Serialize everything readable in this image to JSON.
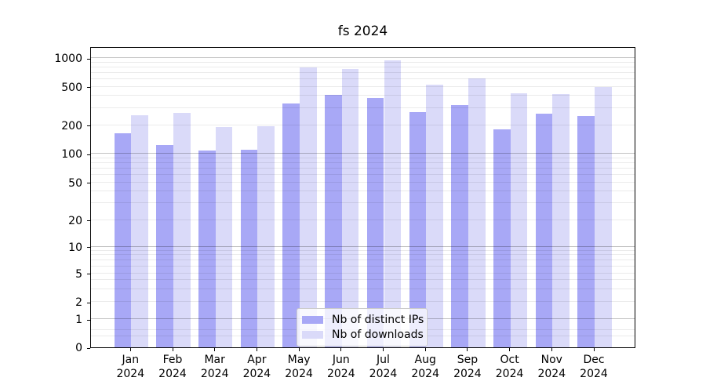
{
  "chart_data": {
    "type": "bar",
    "title": "fs 2024",
    "categories": [
      "Jan",
      "Feb",
      "Mar",
      "Apr",
      "May",
      "Jun",
      "Jul",
      "Aug",
      "Sep",
      "Oct",
      "Nov",
      "Dec"
    ],
    "xtick_year": "2024",
    "series": [
      {
        "name": "Nb of distinct IPs",
        "color": "#a8a8f6",
        "values": [
          165,
          124,
          108,
          110,
          335,
          415,
          385,
          275,
          320,
          180,
          265,
          248
        ]
      },
      {
        "name": "Nb of downloads",
        "color": "#dadaf9",
        "values": [
          255,
          270,
          190,
          195,
          800,
          770,
          940,
          520,
          610,
          425,
          420,
          495
        ]
      }
    ],
    "yticks": [
      0,
      1,
      2,
      5,
      10,
      20,
      50,
      100,
      200,
      500,
      1000
    ],
    "ytick_labels": [
      "0",
      "1",
      "2",
      "5",
      "10",
      "20",
      "50",
      "100",
      "200",
      "500",
      "1000"
    ],
    "scale": "symlog",
    "ylim": [
      0,
      1300
    ],
    "grid": true,
    "legend_position": "lower center inside plot"
  }
}
